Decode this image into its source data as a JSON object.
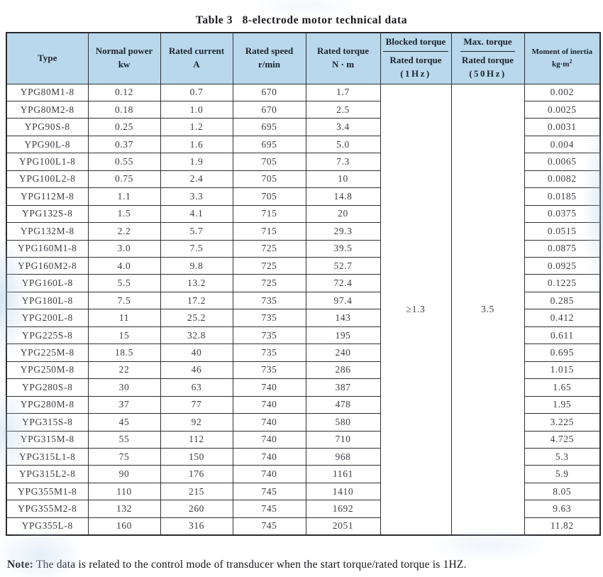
{
  "page": {
    "title": "Table 3   8-electrode motor technical data",
    "note_label": "Note:",
    "note_text": " The data is related to the control mode of transducer when the start torque/rated torque is 1HZ."
  },
  "colors": {
    "header_bg": "#b9d8ec",
    "border": "#303036",
    "header_text": "#1c222e",
    "cell_text": "#3c3c45"
  },
  "table": {
    "headers": {
      "type": "Type",
      "power_l1": "Normal power",
      "power_l2": "kw",
      "current_l1": "Rated current",
      "current_l2": "A",
      "speed_l1": "Rated speed",
      "speed_l2": "r/min",
      "torque_l1": "Rated torque",
      "torque_l2": "N · m",
      "blocked_num": "Blocked torque",
      "blocked_den1": "Rated torque",
      "blocked_den2": "(1Hz)",
      "max_num": "Max. torque",
      "max_den1": "Rated torque",
      "max_den2": "(50Hz)",
      "inertia_l1": "Moment of inertia",
      "inertia_l2": "kg·m",
      "inertia_sup": "2"
    },
    "merged": {
      "blocked_value": "≥1.3",
      "max_value": "3.5"
    },
    "rows": [
      [
        "YPG80M1-8",
        "0.12",
        "0.7",
        "670",
        "1.7",
        "0.002"
      ],
      [
        "YPG80M2-8",
        "0.18",
        "1.0",
        "670",
        "2.5",
        "0.0025"
      ],
      [
        "YPG90S-8",
        "0.25",
        "1.2",
        "695",
        "3.4",
        "0.0031"
      ],
      [
        "YPG90L-8",
        "0.37",
        "1.6",
        "695",
        "5.0",
        "0.004"
      ],
      [
        "YPG100L1-8",
        "0.55",
        "1.9",
        "705",
        "7.3",
        "0.0065"
      ],
      [
        "YPG100L2-8",
        "0.75",
        "2.4",
        "705",
        "10",
        "0.0082"
      ],
      [
        "YPG112M-8",
        "1.1",
        "3.3",
        "705",
        "14.8",
        "0.0185"
      ],
      [
        "YPG132S-8",
        "1.5",
        "4.1",
        "715",
        "20",
        "0.0375"
      ],
      [
        "YPG132M-8",
        "2.2",
        "5.7",
        "715",
        "29.3",
        "0.0515"
      ],
      [
        "YPG160M1-8",
        "3.0",
        "7.5",
        "725",
        "39.5",
        "0.0875"
      ],
      [
        "YPG160M2-8",
        "4.0",
        "9.8",
        "725",
        "52.7",
        "0.0925"
      ],
      [
        "YPG160L-8",
        "5.5",
        "13.2",
        "725",
        "72.4",
        "0.1225"
      ],
      [
        "YPG180L-8",
        "7.5",
        "17.2",
        "735",
        "97.4",
        "0.285"
      ],
      [
        "YPG200L-8",
        "11",
        "25.2",
        "735",
        "143",
        "0.412"
      ],
      [
        "YPG225S-8",
        "15",
        "32.8",
        "735",
        "195",
        "0.611"
      ],
      [
        "YPG225M-8",
        "18.5",
        "40",
        "735",
        "240",
        "0.695"
      ],
      [
        "YPG250M-8",
        "22",
        "46",
        "735",
        "286",
        "1.015"
      ],
      [
        "YPG280S-8",
        "30",
        "63",
        "740",
        "387",
        "1.65"
      ],
      [
        "YPG280M-8",
        "37",
        "77",
        "740",
        "478",
        "1.95"
      ],
      [
        "YPG315S-8",
        "45",
        "92",
        "740",
        "580",
        "3.225"
      ],
      [
        "YPG315M-8",
        "55",
        "112",
        "740",
        "710",
        "4.725"
      ],
      [
        "YPG315L1-8",
        "75",
        "150",
        "740",
        "968",
        "5.3"
      ],
      [
        "YPG315L2-8",
        "90",
        "176",
        "740",
        "1161",
        "5.9"
      ],
      [
        "YPG355M1-8",
        "110",
        "215",
        "745",
        "1410",
        "8.05"
      ],
      [
        "YPG355M2-8",
        "132",
        "260",
        "745",
        "1692",
        "9.63"
      ],
      [
        "YPG355L-8",
        "160",
        "316",
        "745",
        "2051",
        "11.82"
      ]
    ]
  }
}
